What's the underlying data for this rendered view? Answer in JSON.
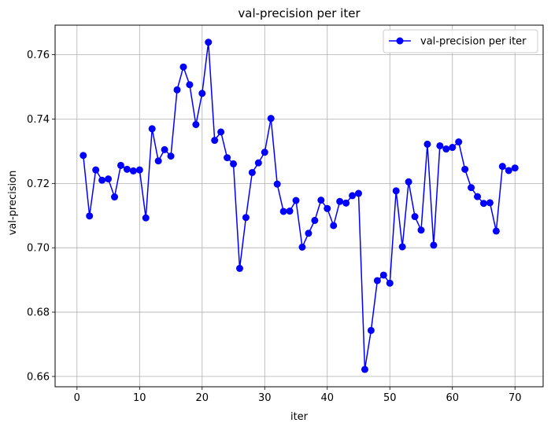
{
  "chart_data": {
    "type": "line",
    "title": "val-precision per iter",
    "xlabel": "iter",
    "ylabel": "val-precision",
    "xlim": [
      -3.5,
      74.5
    ],
    "ylim": [
      0.6568,
      0.7692
    ],
    "xticks": [
      0,
      10,
      20,
      30,
      40,
      50,
      60,
      70
    ],
    "yticks": [
      0.66,
      0.68,
      0.7,
      0.72,
      0.74,
      0.76
    ],
    "ytick_labels": [
      "0.66",
      "0.68",
      "0.70",
      "0.72",
      "0.74",
      "0.76"
    ],
    "grid": true,
    "legend_position": "top-right",
    "series": [
      {
        "name": "val-precision per iter",
        "color": "#0000ff",
        "marker": "circle",
        "x": [
          1,
          2,
          3,
          4,
          5,
          6,
          7,
          8,
          9,
          10,
          11,
          12,
          13,
          14,
          15,
          16,
          17,
          18,
          19,
          20,
          21,
          22,
          23,
          24,
          25,
          26,
          27,
          28,
          29,
          30,
          31,
          32,
          33,
          34,
          35,
          36,
          37,
          38,
          39,
          40,
          41,
          42,
          43,
          44,
          45,
          46,
          47,
          48,
          49,
          50,
          51,
          52,
          53,
          54,
          55,
          56,
          57,
          58,
          59,
          60,
          61,
          62,
          63,
          64,
          65,
          66,
          67,
          68,
          69,
          70
        ],
        "y": [
          0.7287,
          0.7099,
          0.7242,
          0.721,
          0.7214,
          0.7158,
          0.7256,
          0.7244,
          0.7239,
          0.7242,
          0.7093,
          0.737,
          0.727,
          0.7305,
          0.7285,
          0.7491,
          0.7562,
          0.7507,
          0.7383,
          0.748,
          0.7639,
          0.7334,
          0.736,
          0.728,
          0.7261,
          0.6936,
          0.7094,
          0.7234,
          0.7264,
          0.7297,
          0.7402,
          0.7198,
          0.7113,
          0.7114,
          0.7147,
          0.7002,
          0.7045,
          0.7085,
          0.7148,
          0.7122,
          0.7069,
          0.7144,
          0.7139,
          0.7162,
          0.7169,
          0.6622,
          0.6743,
          0.6898,
          0.6915,
          0.689,
          0.7177,
          0.7003,
          0.7205,
          0.7097,
          0.7055,
          0.7322,
          0.7008,
          0.7317,
          0.7307,
          0.7312,
          0.7329,
          0.7244,
          0.7187,
          0.7159,
          0.7138,
          0.714,
          0.7052,
          0.7253,
          0.724,
          0.7248
        ]
      }
    ]
  }
}
